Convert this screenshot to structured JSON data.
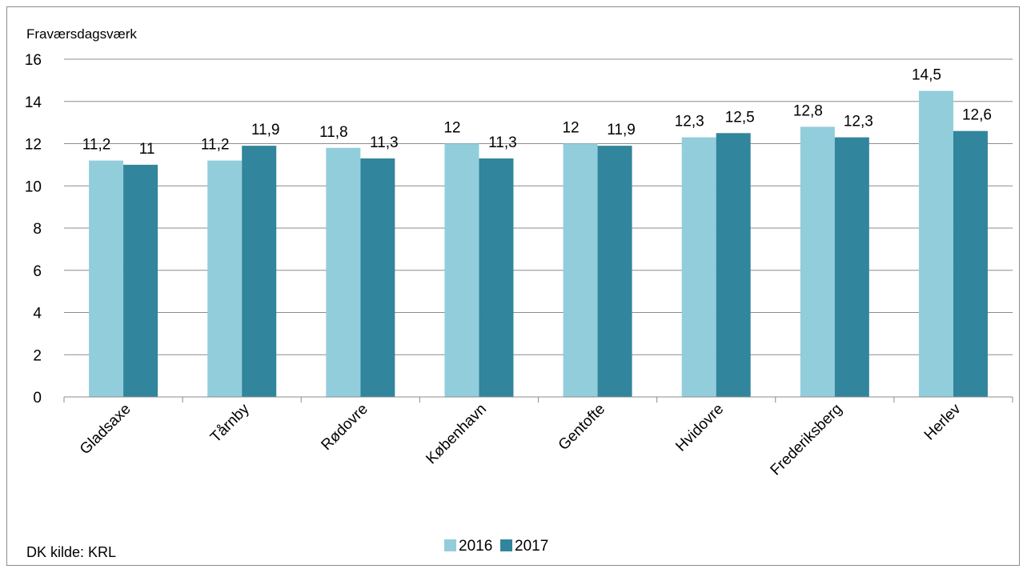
{
  "chart_data": {
    "type": "bar",
    "ylabel": "Fraværsdagsværk",
    "source": "DK kilde: KRL",
    "categories": [
      "Gladsaxe",
      "Tårnby",
      "Rødovre",
      "København",
      "Gentofte",
      "Hvidovre",
      "Frederiksberg",
      "Herlev"
    ],
    "series": [
      {
        "name": "2016",
        "color": "#92cddc",
        "values": [
          11.2,
          11.2,
          11.8,
          12,
          12,
          12.3,
          12.8,
          14.5
        ],
        "labels": [
          "11,2",
          "11,2",
          "11,8",
          "12",
          "12",
          "12,3",
          "12,8",
          "14,5"
        ]
      },
      {
        "name": "2017",
        "color": "#31859c",
        "values": [
          11,
          11.9,
          11.3,
          11.3,
          11.9,
          12.5,
          12.3,
          12.6
        ],
        "labels": [
          "11",
          "11,9",
          "11,3",
          "11,3",
          "11,9",
          "12,5",
          "12,3",
          "12,6"
        ]
      }
    ],
    "ylim": [
      0,
      16
    ],
    "yticks": [
      0,
      2,
      4,
      6,
      8,
      10,
      12,
      14,
      16
    ],
    "grid": true,
    "legend_position": "bottom"
  }
}
